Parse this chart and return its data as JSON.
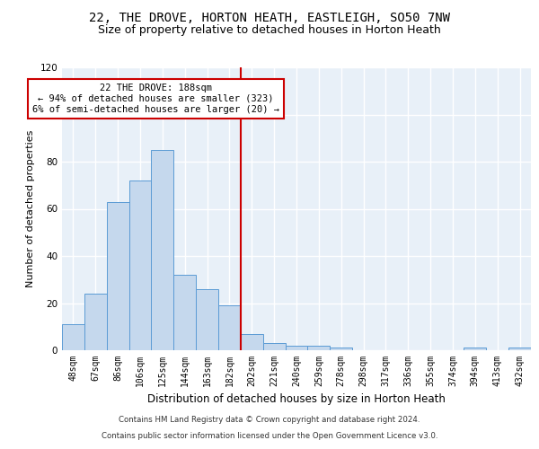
{
  "title": "22, THE DROVE, HORTON HEATH, EASTLEIGH, SO50 7NW",
  "subtitle": "Size of property relative to detached houses in Horton Heath",
  "xlabel": "Distribution of detached houses by size in Horton Heath",
  "ylabel": "Number of detached properties",
  "bar_color": "#c5d8ed",
  "bar_edge_color": "#5b9bd5",
  "categories": [
    "48sqm",
    "67sqm",
    "86sqm",
    "106sqm",
    "125sqm",
    "144sqm",
    "163sqm",
    "182sqm",
    "202sqm",
    "221sqm",
    "240sqm",
    "259sqm",
    "278sqm",
    "298sqm",
    "317sqm",
    "336sqm",
    "355sqm",
    "374sqm",
    "394sqm",
    "413sqm",
    "432sqm"
  ],
  "values": [
    11,
    24,
    63,
    72,
    85,
    32,
    26,
    19,
    7,
    3,
    2,
    2,
    1,
    0,
    0,
    0,
    0,
    0,
    1,
    0,
    1
  ],
  "ylim": [
    0,
    120
  ],
  "yticks": [
    0,
    20,
    40,
    60,
    80,
    100,
    120
  ],
  "vline_index": 7.5,
  "vline_color": "#cc0000",
  "annotation_line1": "22 THE DROVE: 188sqm",
  "annotation_line2": "← 94% of detached houses are smaller (323)",
  "annotation_line3": "6% of semi-detached houses are larger (20) →",
  "footer_line1": "Contains HM Land Registry data © Crown copyright and database right 2024.",
  "footer_line2": "Contains public sector information licensed under the Open Government Licence v3.0.",
  "background_color": "#e8f0f8",
  "grid_color": "#ffffff",
  "title_fontsize": 10,
  "subtitle_fontsize": 9,
  "tick_fontsize": 7,
  "ylabel_fontsize": 8,
  "xlabel_fontsize": 8.5
}
